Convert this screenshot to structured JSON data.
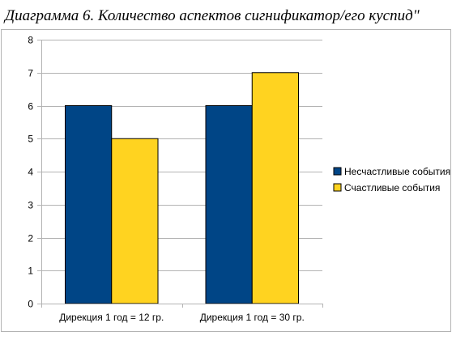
{
  "chart_data": {
    "type": "bar",
    "title": "Диаграмма 6. Количество аспектов сигнификатор/его куспид\"",
    "categories": [
      "Дирекция 1 год = 12 гр.",
      "Дирекция 1 год = 30 гр."
    ],
    "series": [
      {
        "name": "Несчастливые события",
        "values": [
          6,
          6
        ],
        "color": "#004586"
      },
      {
        "name": "Счастливые события",
        "values": [
          5,
          7
        ],
        "color": "#ffd320"
      }
    ],
    "ylim": [
      0,
      8
    ],
    "yticks": [
      0,
      1,
      2,
      3,
      4,
      5,
      6,
      7,
      8
    ],
    "grid": "horizontal",
    "legend": "right",
    "xlabel": "",
    "ylabel": ""
  }
}
